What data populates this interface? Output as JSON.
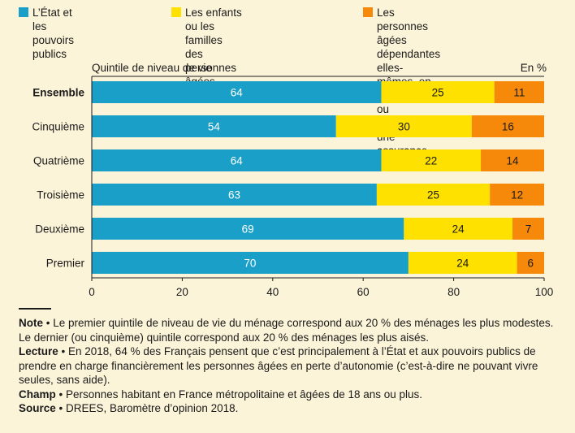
{
  "chart_data": {
    "type": "bar",
    "orientation": "horizontal",
    "stacked": true,
    "categories": [
      "Ensemble",
      "Cinquième",
      "Quatrième",
      "Troisième",
      "Deuxième",
      "Premier"
    ],
    "series": [
      {
        "name": "L’État et les pouvoirs\npublics",
        "color": "#1aa0c8",
        "values": [
          64,
          54,
          64,
          63,
          69,
          70
        ]
      },
      {
        "name": "Les enfants ou les familles\ndes personnes âgées dépendantes",
        "color": "#ffe100",
        "values": [
          25,
          30,
          22,
          25,
          24,
          24
        ]
      },
      {
        "name": "Les personnes âgées dépendantes\nelles-mêmes, en épargnant\nou souscrivant une assurance privée",
        "color": "#f7890a",
        "values": [
          11,
          16,
          14,
          12,
          7,
          6
        ]
      }
    ],
    "xlabel": "Quintile de niveau de vie",
    "unit_label": "En %",
    "xlim": [
      0,
      100
    ],
    "xticks": [
      "0",
      "20",
      "40",
      "60",
      "80",
      "100"
    ],
    "bold_category": "Ensemble"
  },
  "notes": {
    "note_label": "Note",
    "note_text": " • Le premier quintile de niveau de vie du ménage correspond aux 20 % des ménages les plus modestes. Le dernier (ou cinquième) quintile correspond aux 20 % des ménages les plus aisés.",
    "lecture_label": "Lecture",
    "lecture_text": " • En 2018, 64 % des Français pensent que c’est principalement à l’État et aux pouvoirs publics de prendre en charge financièrement les personnes âgées en perte d’autonomie (c’est-à-dire ne pouvant vivre seules, sans aide).",
    "champ_label": "Champ",
    "champ_text": " • Personnes habitant en France métropolitaine et âgées de 18 ans ou plus.",
    "source_label": "Source",
    "source_text": " • DREES, Baromètre d’opinion 2018."
  }
}
